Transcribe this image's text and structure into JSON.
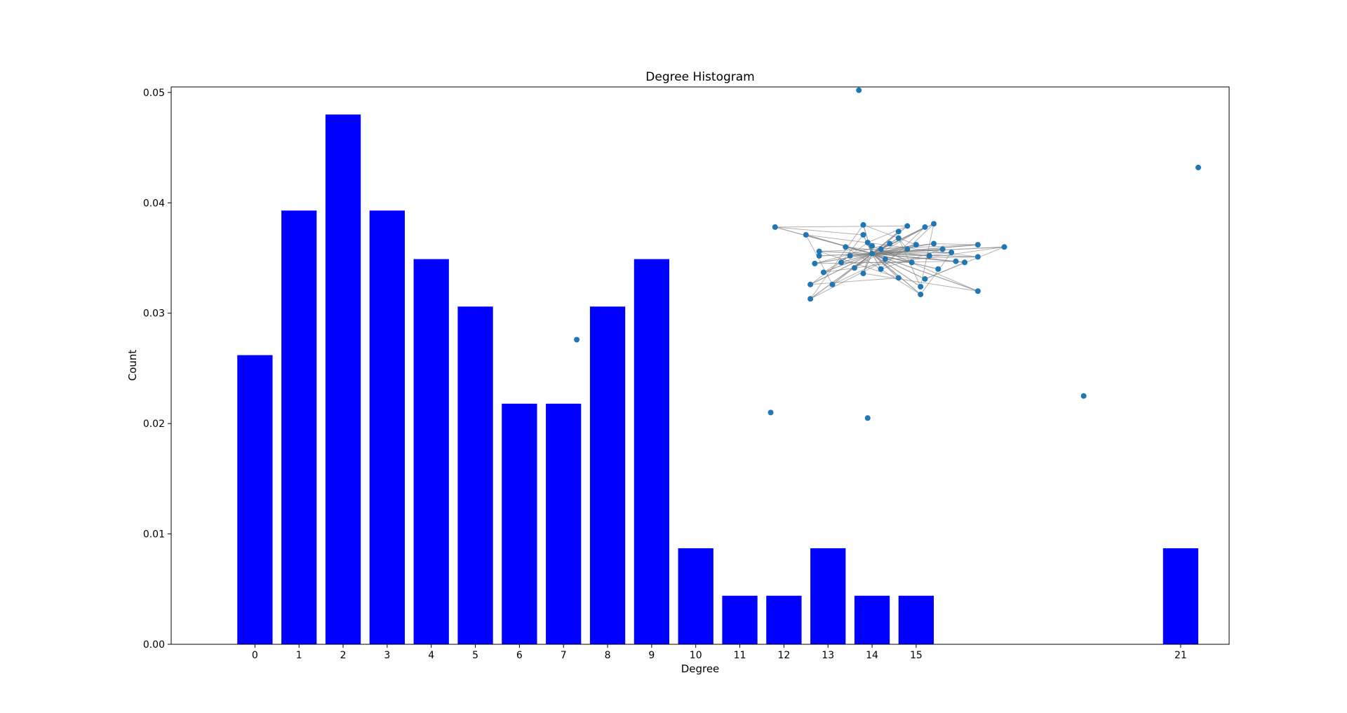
{
  "chart_data": {
    "type": "bar",
    "title": "Degree Histogram",
    "xlabel": "Degree",
    "ylabel": "Count",
    "bar_color": "#0000ff",
    "ylim": [
      0,
      0.0505
    ],
    "xlim": [
      -1.9,
      22.1
    ],
    "categories": [
      "0",
      "1",
      "2",
      "3",
      "4",
      "5",
      "6",
      "7",
      "8",
      "9",
      "10",
      "11",
      "12",
      "13",
      "14",
      "15",
      "21"
    ],
    "bars": [
      {
        "x": 0,
        "value": 0.0262
      },
      {
        "x": 1,
        "value": 0.0393
      },
      {
        "x": 2,
        "value": 0.048
      },
      {
        "x": 3,
        "value": 0.0393
      },
      {
        "x": 4,
        "value": 0.0349
      },
      {
        "x": 5,
        "value": 0.0306
      },
      {
        "x": 6,
        "value": 0.0218
      },
      {
        "x": 7,
        "value": 0.0218
      },
      {
        "x": 8,
        "value": 0.0306
      },
      {
        "x": 9,
        "value": 0.0349
      },
      {
        "x": 10,
        "value": 0.0087
      },
      {
        "x": 11,
        "value": 0.0044
      },
      {
        "x": 12,
        "value": 0.0044
      },
      {
        "x": 13,
        "value": 0.0087
      },
      {
        "x": 14,
        "value": 0.0044
      },
      {
        "x": 15,
        "value": 0.0044
      },
      {
        "x": 21,
        "value": 0.0087
      }
    ],
    "yticks": [
      "0.00",
      "0.01",
      "0.02",
      "0.03",
      "0.04",
      "0.05"
    ],
    "ytick_values": [
      0,
      0.01,
      0.02,
      0.03,
      0.04,
      0.05
    ],
    "bar_width": 0.8,
    "grid": false,
    "inset": {
      "type": "network",
      "node_color": "#1f77b4",
      "edge_color": "#808080",
      "isolated_nodes": [
        {
          "x": 13.7,
          "y": 0.0502
        },
        {
          "x": 21.4,
          "y": 0.0432
        },
        {
          "x": 7.3,
          "y": 0.0276
        },
        {
          "x": 11.7,
          "y": 0.021
        },
        {
          "x": 13.9,
          "y": 0.0205
        },
        {
          "x": 18.8,
          "y": 0.0225
        }
      ],
      "hub": {
        "x": 14.0,
        "y": 0.0354
      },
      "cluster_nodes": [
        {
          "x": 11.8,
          "y": 0.0378
        },
        {
          "x": 12.5,
          "y": 0.0371
        },
        {
          "x": 13.8,
          "y": 0.038
        },
        {
          "x": 13.8,
          "y": 0.0371
        },
        {
          "x": 15.4,
          "y": 0.0381
        },
        {
          "x": 15.2,
          "y": 0.0378
        },
        {
          "x": 14.8,
          "y": 0.0379
        },
        {
          "x": 14.6,
          "y": 0.0374
        },
        {
          "x": 17.0,
          "y": 0.036
        },
        {
          "x": 16.4,
          "y": 0.0362
        },
        {
          "x": 16.4,
          "y": 0.0351
        },
        {
          "x": 16.1,
          "y": 0.0346
        },
        {
          "x": 16.4,
          "y": 0.032
        },
        {
          "x": 15.1,
          "y": 0.0324
        },
        {
          "x": 15.2,
          "y": 0.0331
        },
        {
          "x": 14.6,
          "y": 0.0332
        },
        {
          "x": 15.1,
          "y": 0.0317
        },
        {
          "x": 12.6,
          "y": 0.0313
        },
        {
          "x": 12.6,
          "y": 0.0326
        },
        {
          "x": 13.1,
          "y": 0.0326
        },
        {
          "x": 12.9,
          "y": 0.0337
        },
        {
          "x": 12.8,
          "y": 0.0356
        },
        {
          "x": 12.8,
          "y": 0.0352
        },
        {
          "x": 12.7,
          "y": 0.0345
        },
        {
          "x": 13.3,
          "y": 0.0346
        },
        {
          "x": 13.4,
          "y": 0.036
        },
        {
          "x": 13.6,
          "y": 0.0341
        },
        {
          "x": 13.8,
          "y": 0.0336
        },
        {
          "x": 14.3,
          "y": 0.0349
        },
        {
          "x": 14.4,
          "y": 0.0363
        },
        {
          "x": 14.2,
          "y": 0.0358
        },
        {
          "x": 14.8,
          "y": 0.0358
        },
        {
          "x": 15.0,
          "y": 0.0362
        },
        {
          "x": 15.4,
          "y": 0.0363
        },
        {
          "x": 15.8,
          "y": 0.0355
        },
        {
          "x": 15.9,
          "y": 0.0347
        },
        {
          "x": 14.9,
          "y": 0.0346
        },
        {
          "x": 15.5,
          "y": 0.034
        },
        {
          "x": 14.2,
          "y": 0.034
        },
        {
          "x": 13.9,
          "y": 0.0364
        },
        {
          "x": 14.6,
          "y": 0.0368
        },
        {
          "x": 13.5,
          "y": 0.0352
        },
        {
          "x": 14.0,
          "y": 0.0361
        },
        {
          "x": 15.3,
          "y": 0.0352
        },
        {
          "x": 15.6,
          "y": 0.0358
        }
      ]
    }
  }
}
